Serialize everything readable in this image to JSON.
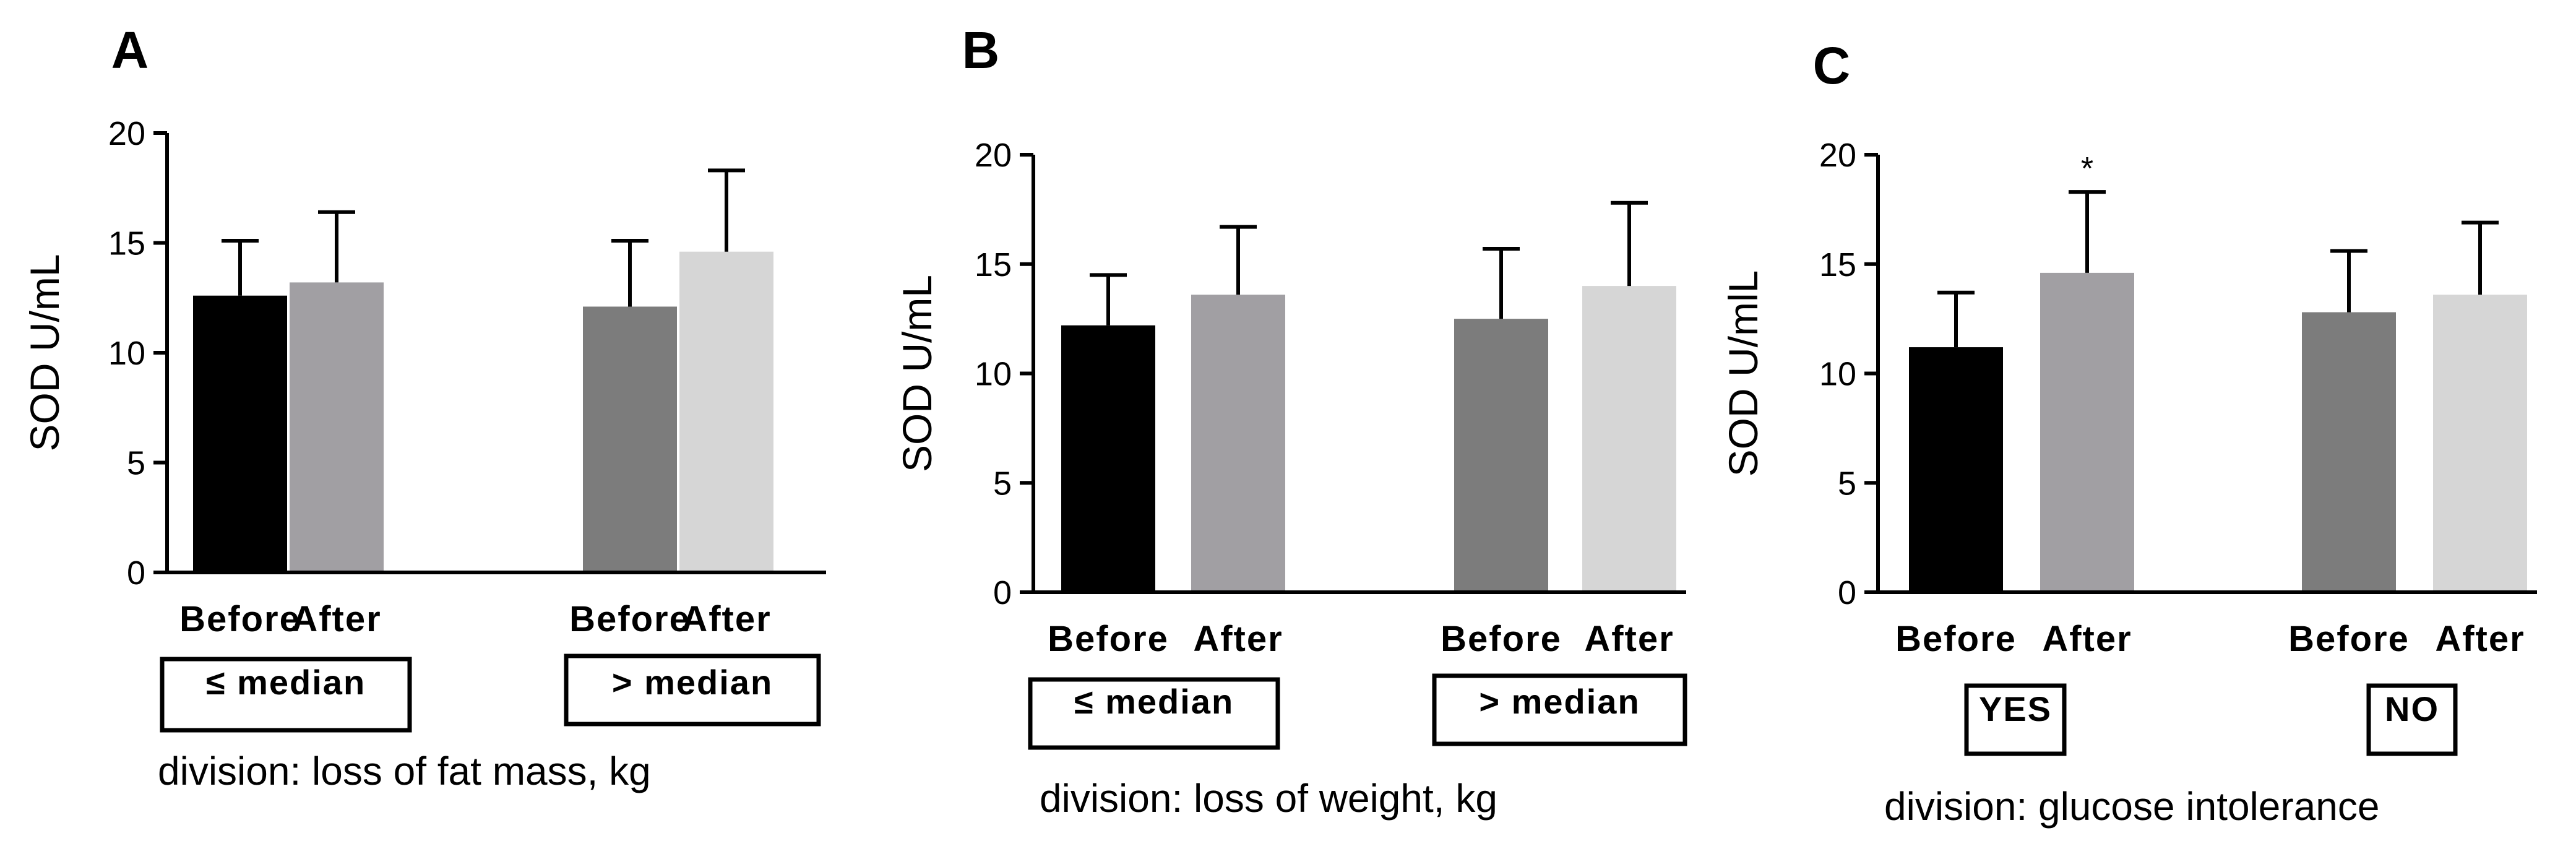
{
  "chart_data": [
    {
      "type": "bar",
      "panel": "A",
      "ylabel": "SOD U/mL",
      "ylim": [
        0,
        20
      ],
      "yticks": [
        "0",
        "5",
        "10",
        "15",
        "20"
      ],
      "groups": [
        {
          "label": "≤ median",
          "bars": [
            {
              "category": "Before",
              "value": 12.6,
              "error": 2.5,
              "color": "#000000",
              "annotation": ""
            },
            {
              "category": "After",
              "value": 13.2,
              "error": 3.2,
              "color": "#a19fa3",
              "annotation": ""
            }
          ]
        },
        {
          "label": "> median",
          "bars": [
            {
              "category": "Before",
              "value": 12.1,
              "error": 3.0,
              "color": "#7c7c7c",
              "annotation": ""
            },
            {
              "category": "After",
              "value": 14.6,
              "error": 3.7,
              "color": "#d6d6d6",
              "annotation": ""
            }
          ]
        }
      ],
      "division": "division: loss of fat mass, kg"
    },
    {
      "type": "bar",
      "panel": "B",
      "ylabel": "SOD U/mL",
      "ylim": [
        0,
        20
      ],
      "yticks": [
        "0",
        "5",
        "10",
        "15",
        "20"
      ],
      "groups": [
        {
          "label": "≤ median",
          "bars": [
            {
              "category": "Before",
              "value": 12.2,
              "error": 2.3,
              "color": "#000000",
              "annotation": ""
            },
            {
              "category": "After",
              "value": 13.6,
              "error": 3.1,
              "color": "#a19fa3",
              "annotation": ""
            }
          ]
        },
        {
          "label": "> median",
          "bars": [
            {
              "category": "Before",
              "value": 12.5,
              "error": 3.2,
              "color": "#7c7c7c",
              "annotation": ""
            },
            {
              "category": "After",
              "value": 14.0,
              "error": 3.8,
              "color": "#d6d6d6",
              "annotation": ""
            }
          ]
        }
      ],
      "division": "division: loss of weight, kg"
    },
    {
      "type": "bar",
      "panel": "C",
      "ylabel": "SOD U/mlL",
      "ylim": [
        0,
        20
      ],
      "yticks": [
        "0",
        "5",
        "10",
        "15",
        "20"
      ],
      "groups": [
        {
          "label": "YES",
          "bars": [
            {
              "category": "Before",
              "value": 11.2,
              "error": 2.5,
              "color": "#000000",
              "annotation": ""
            },
            {
              "category": "After",
              "value": 14.6,
              "error": 3.7,
              "color": "#a19fa3",
              "annotation": "*"
            }
          ]
        },
        {
          "label": "NO",
          "bars": [
            {
              "category": "Before",
              "value": 12.8,
              "error": 2.8,
              "color": "#7c7c7c",
              "annotation": ""
            },
            {
              "category": "After",
              "value": 13.6,
              "error": 3.3,
              "color": "#d6d6d6",
              "annotation": ""
            }
          ]
        }
      ],
      "division": "division: glucose intolerance"
    }
  ]
}
